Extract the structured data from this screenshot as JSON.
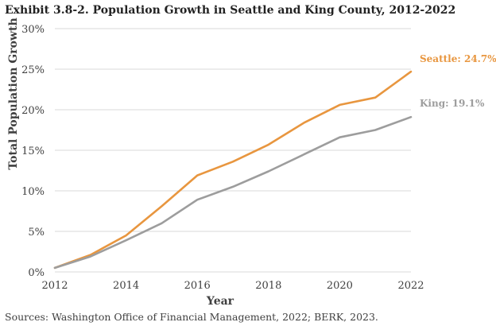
{
  "chart_data": {
    "type": "line",
    "title": "Exhibit 3.8-2. Population Growth in Seattle and King County, 2012-2022",
    "xlabel": "Year",
    "ylabel": "Total Population Growth",
    "x": [
      2012,
      2013,
      2014,
      2015,
      2016,
      2017,
      2018,
      2019,
      2020,
      2021,
      2022
    ],
    "xticks": [
      2012,
      2014,
      2016,
      2018,
      2020,
      2022
    ],
    "xlim": [
      2012,
      2022
    ],
    "ylim": [
      0,
      30
    ],
    "yticks": [
      0,
      5,
      10,
      15,
      20,
      25,
      30
    ],
    "yticklabels": [
      "0%",
      "5%",
      "10%",
      "15%",
      "20%",
      "25%",
      "30%"
    ],
    "grid": "horizontal",
    "series": [
      {
        "name": "Seattle",
        "color": "#e8963f",
        "values": [
          0.5,
          2.1,
          4.5,
          8.1,
          11.9,
          13.6,
          15.7,
          18.4,
          20.6,
          21.5,
          24.7
        ],
        "end_label": "Seattle: 24.7%"
      },
      {
        "name": "King",
        "color": "#9d9d9d",
        "values": [
          0.5,
          1.9,
          3.9,
          6.0,
          8.9,
          10.5,
          12.4,
          14.5,
          16.6,
          17.5,
          19.1
        ],
        "end_label": "King: 19.1%"
      }
    ],
    "source": "Sources: Washington Office of Financial Management, 2022; BERK, 2023."
  }
}
